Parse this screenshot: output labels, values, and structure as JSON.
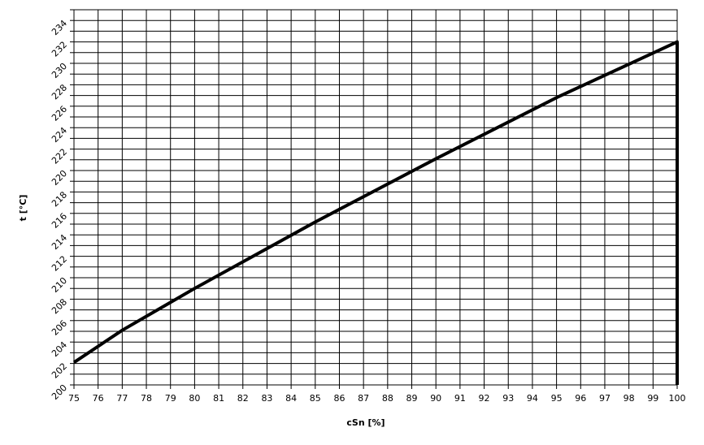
{
  "chart_data": {
    "type": "line",
    "xlabel": "cSn [%]",
    "ylabel": "t [°C]",
    "xlim": [
      75,
      100
    ],
    "ylim": [
      200,
      235
    ],
    "xticks": [
      75,
      76,
      77,
      78,
      79,
      80,
      81,
      82,
      83,
      84,
      85,
      86,
      87,
      88,
      89,
      90,
      91,
      92,
      93,
      94,
      95,
      96,
      97,
      98,
      99,
      100
    ],
    "yticks": [
      200,
      202,
      204,
      206,
      208,
      210,
      212,
      214,
      216,
      218,
      220,
      222,
      224,
      226,
      228,
      230,
      232,
      234
    ],
    "y_minor_ticks": [
      201,
      203,
      205,
      207,
      209,
      211,
      213,
      215,
      217,
      219,
      221,
      223,
      225,
      227,
      229,
      231,
      233,
      235
    ],
    "grid": true,
    "series": [
      {
        "color": "#000000",
        "x": [
          75,
          77,
          80,
          85,
          90,
          95,
          100,
          100
        ],
        "values": [
          202.1,
          205.1,
          209.0,
          215.2,
          221.1,
          226.8,
          232.0,
          200
        ]
      }
    ]
  }
}
